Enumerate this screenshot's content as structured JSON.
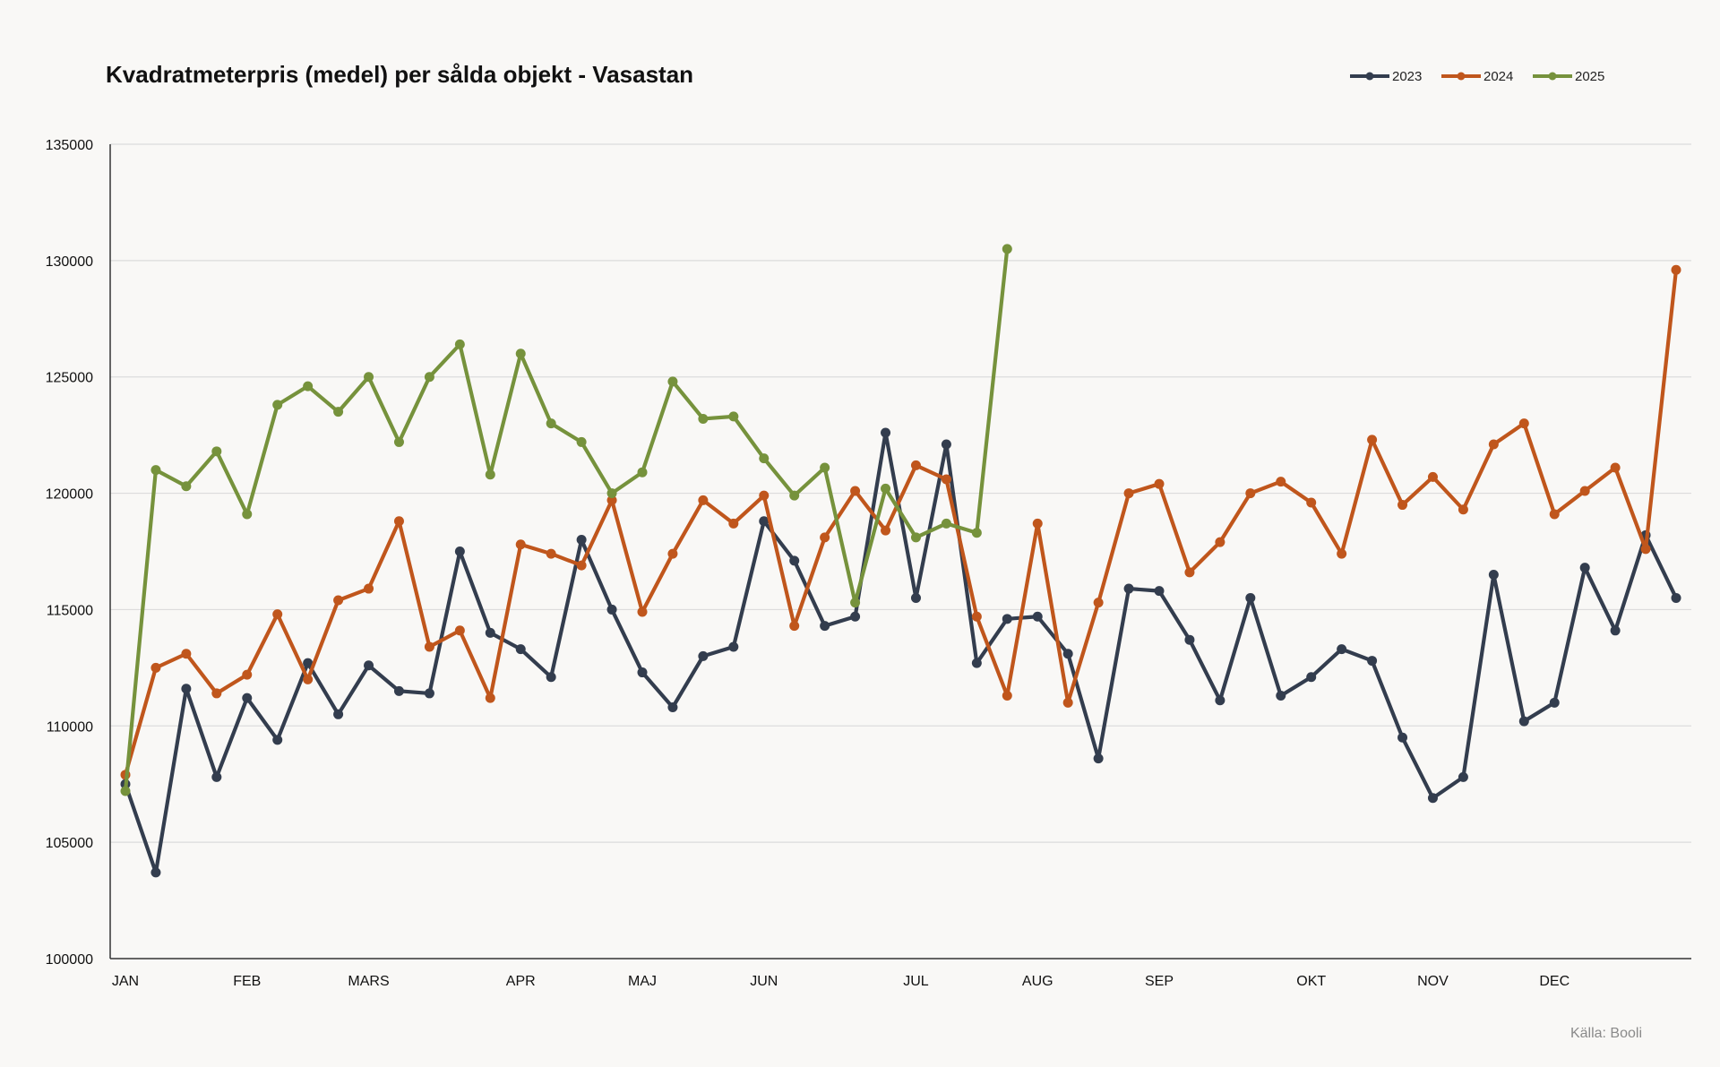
{
  "chart_data": {
    "type": "line",
    "title": "Kvadratmeterpris (medel) per sålda objekt - Vasastan",
    "source": "Källa: Booli",
    "xlabel": "",
    "ylabel": "",
    "ylim": [
      100000,
      135000
    ],
    "y_ticks": [
      "100000",
      "105000",
      "110000",
      "115000",
      "120000",
      "125000",
      "130000",
      "135000"
    ],
    "x_count": 52,
    "month_ticks": [
      {
        "label": "JAN",
        "index": 0
      },
      {
        "label": "FEB",
        "index": 4
      },
      {
        "label": "MARS",
        "index": 8
      },
      {
        "label": "APR",
        "index": 13
      },
      {
        "label": "MAJ",
        "index": 17
      },
      {
        "label": "JUN",
        "index": 21
      },
      {
        "label": "JUL",
        "index": 26
      },
      {
        "label": "AUG",
        "index": 30
      },
      {
        "label": "SEP",
        "index": 34
      },
      {
        "label": "OKT",
        "index": 39
      },
      {
        "label": "NOV",
        "index": 43
      },
      {
        "label": "DEC",
        "index": 47
      }
    ],
    "grid": true,
    "legend_position": "top-right",
    "series": [
      {
        "name": "2023",
        "color": "#333d4e",
        "values": [
          107500,
          103700,
          111600,
          107800,
          111200,
          109400,
          112700,
          110500,
          112600,
          111500,
          111400,
          117500,
          114000,
          113300,
          112100,
          118000,
          115000,
          112300,
          110800,
          113000,
          113400,
          118800,
          117100,
          114300,
          114700,
          122600,
          115500,
          122100,
          112700,
          114600,
          114700,
          113100,
          108600,
          115900,
          115800,
          113700,
          111100,
          115500,
          111300,
          112100,
          113300,
          112800,
          109500,
          106900,
          107800,
          116500,
          110200,
          111000,
          116800,
          114100,
          118200,
          115500
        ]
      },
      {
        "name": "2024",
        "color": "#c0561c",
        "values": [
          107900,
          112500,
          113100,
          111400,
          112200,
          114800,
          112000,
          115400,
          115900,
          118800,
          113400,
          114100,
          111200,
          117800,
          117400,
          116900,
          119700,
          114900,
          117400,
          119700,
          118700,
          119900,
          114300,
          118100,
          120100,
          118400,
          121200,
          120600,
          114700,
          111300,
          118700,
          111000,
          115300,
          120000,
          120400,
          116600,
          117900,
          120000,
          120500,
          119600,
          117400,
          122300,
          119500,
          120700,
          119300,
          122100,
          123000,
          119100,
          120100,
          121100,
          117600,
          129600
        ]
      },
      {
        "name": "2025",
        "color": "#76923c",
        "values": [
          107200,
          121000,
          120300,
          121800,
          119100,
          123800,
          124600,
          123500,
          125000,
          122200,
          125000,
          126400,
          120800,
          126000,
          123000,
          122200,
          120000,
          120900,
          124800,
          123200,
          123300,
          121500,
          119900,
          121100,
          115300,
          120200,
          118100,
          118700,
          118300,
          130500
        ]
      }
    ]
  }
}
